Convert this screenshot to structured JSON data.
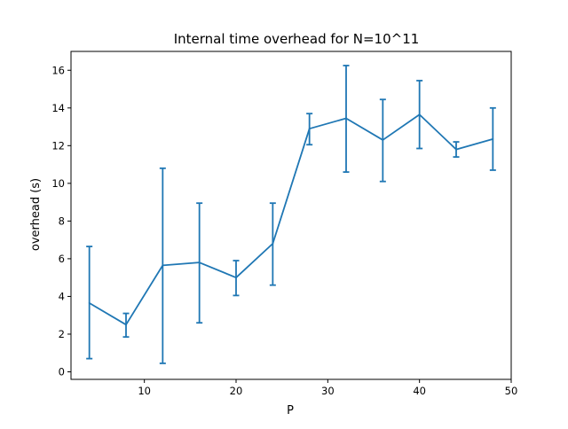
{
  "chart_data": {
    "type": "line",
    "title": "Internal time overhead for N=10^11",
    "xlabel": "P",
    "ylabel": "overhead (s)",
    "xlim": [
      2,
      50
    ],
    "ylim": [
      -0.4,
      17
    ],
    "xticks": [
      10,
      20,
      30,
      40,
      50
    ],
    "yticks": [
      0,
      2,
      4,
      6,
      8,
      10,
      12,
      14,
      16
    ],
    "grid": false,
    "legend": "none",
    "series": [
      {
        "color": "#1f77b4",
        "x": [
          4,
          8,
          12,
          16,
          20,
          24,
          28,
          32,
          36,
          40,
          44,
          48
        ],
        "y": [
          3.65,
          2.5,
          5.65,
          5.8,
          5.0,
          6.8,
          12.9,
          13.45,
          12.3,
          13.65,
          11.8,
          12.35
        ],
        "err_low": [
          0.7,
          1.85,
          0.45,
          2.6,
          4.05,
          4.6,
          12.05,
          10.6,
          10.1,
          11.85,
          11.4,
          10.7
        ],
        "err_high": [
          6.65,
          3.1,
          10.8,
          8.95,
          5.9,
          8.95,
          13.7,
          16.25,
          14.45,
          15.45,
          12.2,
          14.0
        ]
      }
    ]
  }
}
